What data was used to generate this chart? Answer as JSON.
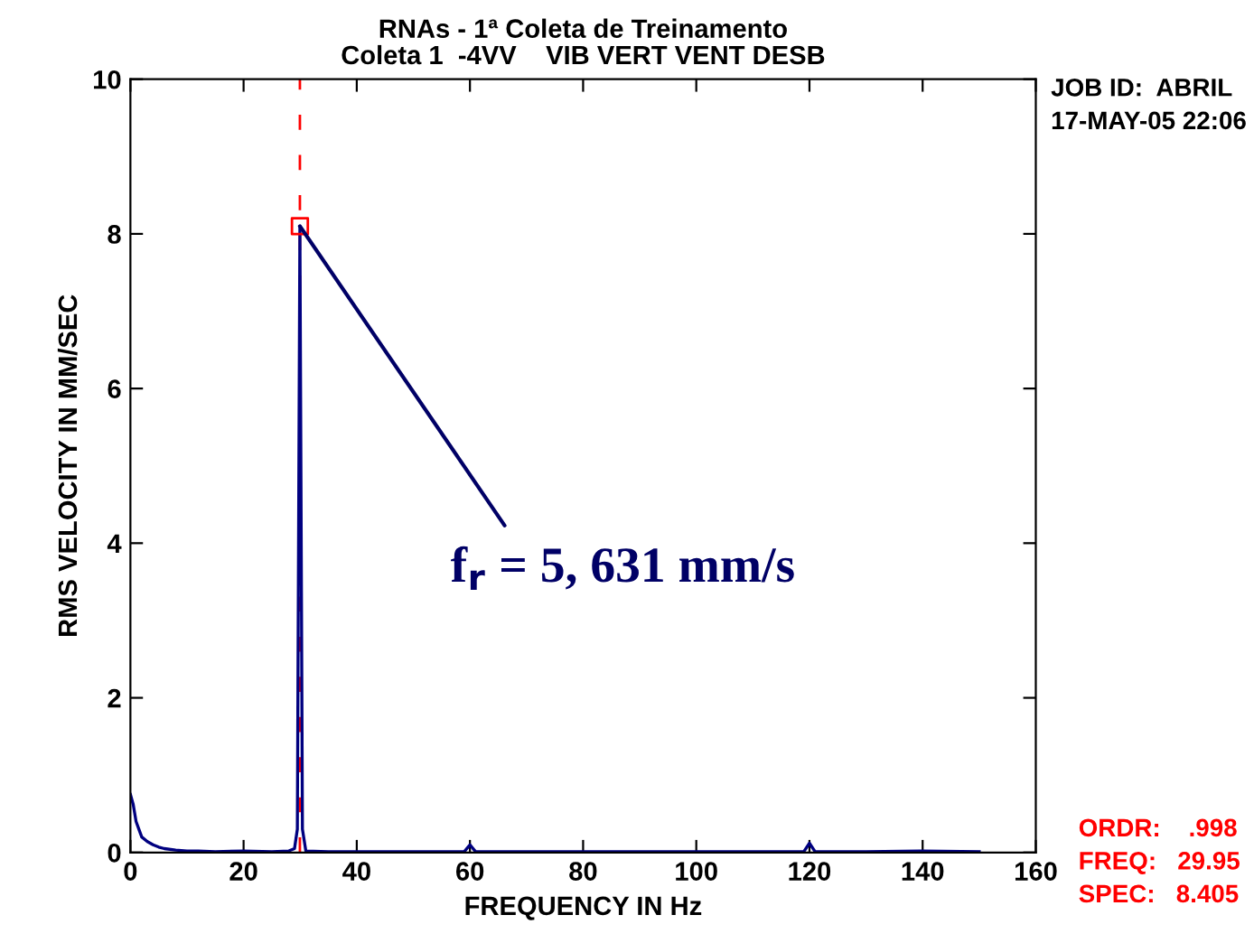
{
  "chart_data": {
    "type": "line",
    "title": "RNAs - 1ª Coleta de Treinamento\nColeta 1  -4VV    VIB VERT VENT DESB",
    "xlabel": "FREQUENCY IN Hz",
    "ylabel": "RMS VELOCITY IN MM/SEC",
    "series": [
      {
        "color": "#000080",
        "x": [
          0,
          0.5,
          1,
          1.5,
          2,
          3,
          4,
          5,
          6,
          8,
          10,
          12,
          15,
          20,
          25,
          28,
          29,
          29.5,
          29.95,
          30.4,
          31,
          35,
          45,
          55,
          59,
          60,
          61,
          70,
          90,
          110,
          119,
          120,
          121,
          130,
          140,
          150
        ],
        "values": [
          0.75,
          0.62,
          0.4,
          0.3,
          0.2,
          0.14,
          0.1,
          0.07,
          0.05,
          0.03,
          0.02,
          0.02,
          0.01,
          0.02,
          0.01,
          0.02,
          0.05,
          0.3,
          8.1,
          0.3,
          0.02,
          0.01,
          0.01,
          0.01,
          0.01,
          0.1,
          0.01,
          0.01,
          0.01,
          0.01,
          0.01,
          0.12,
          0.01,
          0.01,
          0.02,
          0.01
        ]
      },
      {
        "type": "scatter",
        "color": "#ff0000",
        "marker": "square",
        "x": [
          29.95
        ],
        "values": [
          8.1
        ]
      }
    ],
    "xlim": [
      0,
      160
    ],
    "ylim": [
      0,
      10
    ],
    "xticks": [
      0,
      20,
      40,
      60,
      80,
      100,
      120,
      140,
      160
    ],
    "yticks": [
      0,
      2,
      4,
      6,
      8,
      10
    ],
    "grid": false,
    "legend": false,
    "ref_lines": [
      {
        "axis": "x",
        "value": 29.95,
        "color": "#ff0000",
        "line_style": "dashed"
      }
    ],
    "annotations": [
      {
        "text": "f$_{r}$ = 5, 631 mm/s",
        "x": 29.95,
        "y": 8.1
      },
      "JOB ID:  ABRIL",
      "17-MAY-05 22:06",
      "ORDR:    .998",
      "FREQ:   29.95",
      "SPEC:   8.405"
    ]
  }
}
